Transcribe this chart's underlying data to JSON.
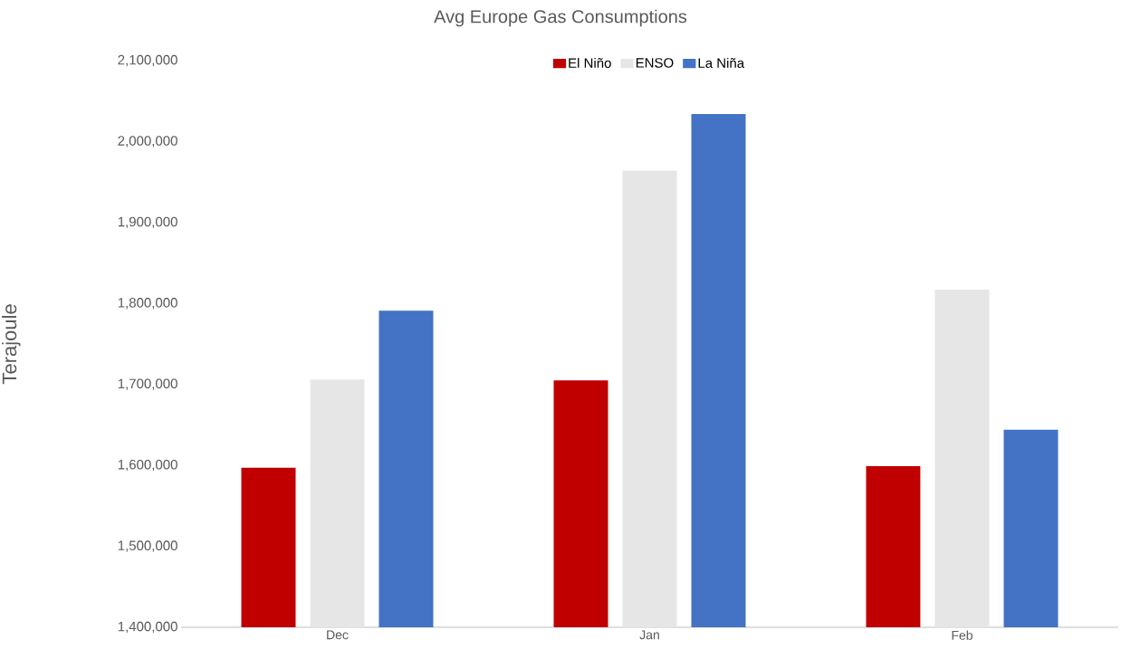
{
  "chart_data": {
    "type": "bar",
    "title": "Avg Europe Gas Consumptions",
    "ylabel": "Terajoule",
    "categories": [
      "Dec",
      "Jan",
      "Feb"
    ],
    "series": [
      {
        "name": "El Niño",
        "color": "#c00000",
        "values": [
          1597000,
          1705000,
          1599000
        ]
      },
      {
        "name": "ENSO",
        "color": "#e7e6e6",
        "values": [
          1706000,
          1964000,
          1817000
        ]
      },
      {
        "name": "La Niña",
        "color": "#4472c4",
        "values": [
          1791000,
          2034000,
          1644000
        ]
      }
    ],
    "ylim": [
      1400000,
      2100000
    ],
    "yticks": [
      {
        "value": 1400000,
        "label": "1,400,000"
      },
      {
        "value": 1500000,
        "label": "1,500,000"
      },
      {
        "value": 1600000,
        "label": "1,600,000"
      },
      {
        "value": 1700000,
        "label": "1,700,000"
      },
      {
        "value": 1800000,
        "label": "1,800,000"
      },
      {
        "value": 1900000,
        "label": "1,900,000"
      },
      {
        "value": 2000000,
        "label": "2,000,000"
      },
      {
        "value": 2100000,
        "label": "2,100,000"
      }
    ],
    "legend": "top"
  }
}
